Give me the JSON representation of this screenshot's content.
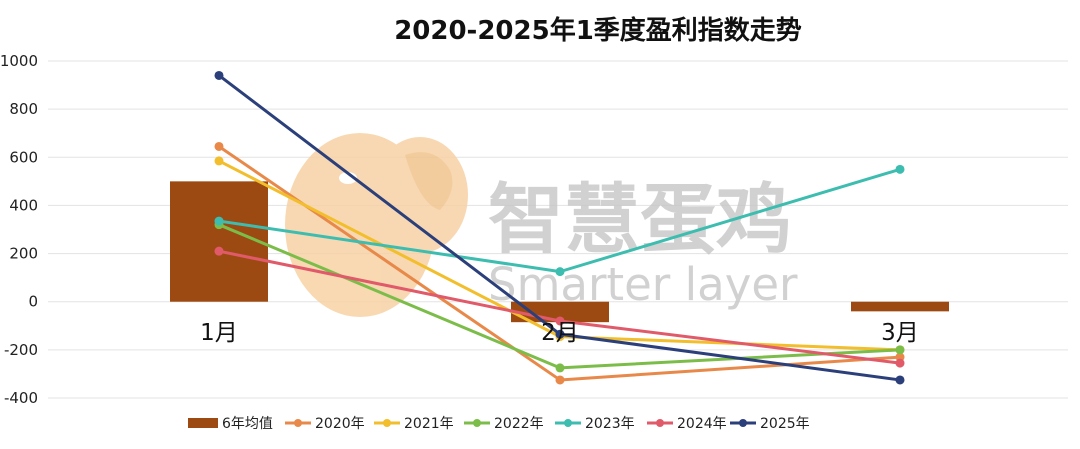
{
  "title": "2020-2025年1季度盈利指数走势",
  "watermark": {
    "brand_cn": "智慧蛋鸡",
    "brand_en": "Smarter layer",
    "brand_color": "#f7d2a5",
    "text_color": "#c9c9c9"
  },
  "chart_data": {
    "type": "bar",
    "categories": [
      "1月",
      "2月",
      "3月"
    ],
    "ylim": [
      -400,
      1000
    ],
    "yticks": [
      1000,
      800,
      600,
      400,
      200,
      0,
      -200,
      -400
    ],
    "grid": true,
    "legend_position": "bottom",
    "series": [
      {
        "name": "6年均值",
        "type": "bar",
        "color": "#9c4a12",
        "values": [
          500,
          -85,
          -40
        ]
      },
      {
        "name": "2020年",
        "type": "line",
        "color": "#e8894a",
        "values": [
          645,
          -325,
          -230
        ]
      },
      {
        "name": "2021年",
        "type": "line",
        "color": "#f2be2c",
        "values": [
          585,
          -145,
          -200
        ]
      },
      {
        "name": "2022年",
        "type": "line",
        "color": "#7cbd4a",
        "values": [
          320,
          -275,
          -200
        ]
      },
      {
        "name": "2023年",
        "type": "line",
        "color": "#3dbdb0",
        "values": [
          335,
          125,
          550
        ]
      },
      {
        "name": "2024年",
        "type": "line",
        "color": "#e05a6a",
        "values": [
          210,
          -80,
          -255
        ]
      },
      {
        "name": "2025年",
        "type": "line",
        "color": "#2b3f7a",
        "values": [
          940,
          -135,
          -325
        ]
      }
    ]
  }
}
